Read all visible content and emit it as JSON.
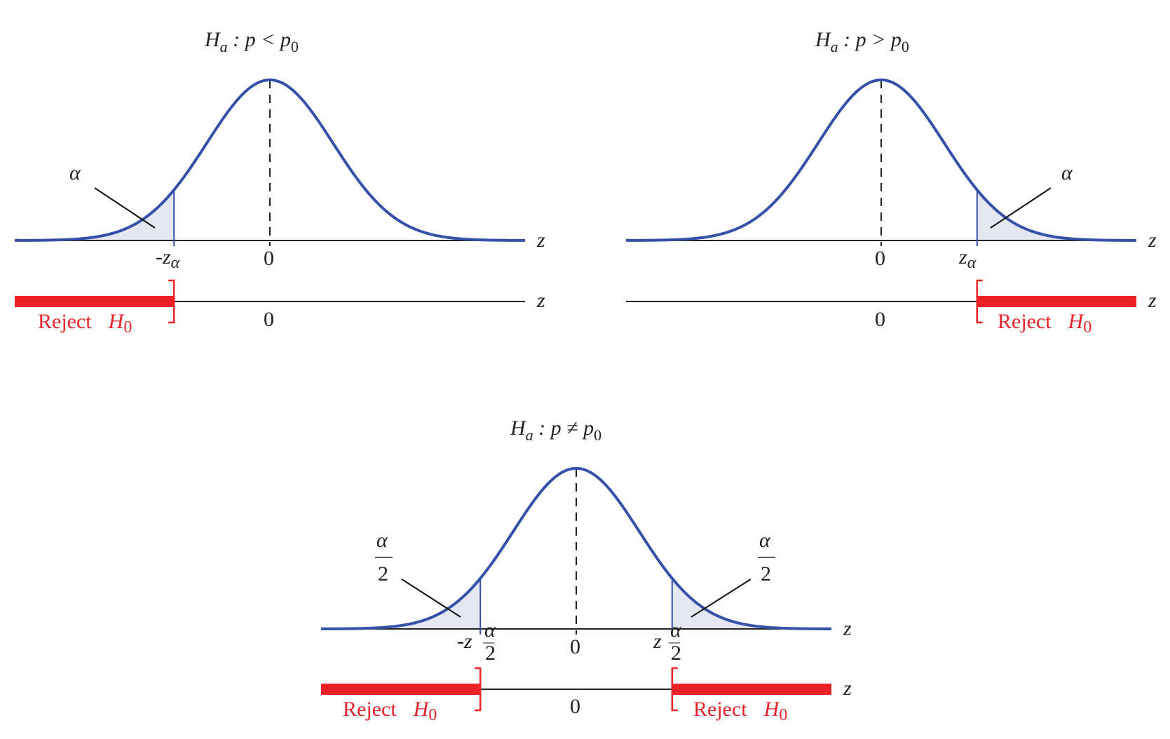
{
  "colors": {
    "curve": "#3550a8",
    "shade": "#e4e6f2",
    "reject": "#ec2227",
    "axis": "#222222"
  },
  "axis_label": "z",
  "zero_label": "0",
  "reject_label": "Reject",
  "h0": {
    "H": "H",
    "sub": "0"
  },
  "panels": [
    {
      "title": {
        "H": "H",
        "a": "a",
        "rel": " : p < p",
        "sub": "0"
      },
      "tail": "left",
      "area_label": "α",
      "crit_label": {
        "main": "-z",
        "sub": "α"
      }
    },
    {
      "title": {
        "H": "H",
        "a": "a",
        "rel": " : p > p",
        "sub": "0"
      },
      "tail": "right",
      "area_label": "α",
      "crit_label": {
        "main": "z",
        "sub": "α"
      }
    },
    {
      "title": {
        "H": "H",
        "a": "a",
        "rel": " : p ≠ p",
        "sub": "0"
      },
      "tail": "two",
      "area_label": {
        "num": "α",
        "den": "2"
      },
      "crit_left": {
        "main": "-z",
        "num": "α",
        "den": "2"
      },
      "crit_right": {
        "main": "z",
        "num": "α",
        "den": "2"
      }
    }
  ]
}
